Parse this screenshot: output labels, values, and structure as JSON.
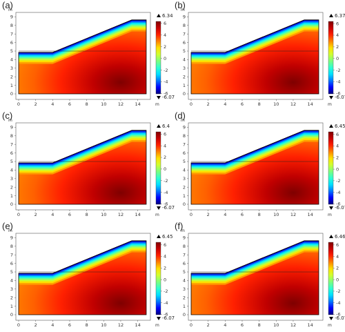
{
  "figure": {
    "colormap": [
      "#00007f",
      "#0000ff",
      "#0078ff",
      "#00e0ff",
      "#30ffd0",
      "#7dff7d",
      "#d0ff30",
      "#ffe000",
      "#ff8000",
      "#ff2000",
      "#c80000",
      "#7f0000"
    ],
    "boundary_color": "#000000",
    "axis_unit": "m",
    "x_ticks": [
      "0",
      "2",
      "4",
      "6",
      "8",
      "10",
      "12",
      "14"
    ],
    "y_ticks": [
      "0",
      "1",
      "2",
      "3",
      "4",
      "5",
      "6",
      "7",
      "8",
      "9"
    ],
    "colorbar_ticks": [
      "6",
      "4",
      "2",
      "0",
      "-2",
      "-4",
      "-6"
    ],
    "panels": [
      {
        "label": "(a)",
        "max": "6.34",
        "min": "-6.07"
      },
      {
        "label": "(b)",
        "max": "6.37",
        "min": "-6.07"
      },
      {
        "label": "(c)",
        "max": "6.4",
        "min": "-6.07"
      },
      {
        "label": "(d)",
        "max": "6.45",
        "min": "-6.07"
      },
      {
        "label": "(e)",
        "max": "6.45",
        "min": "-6.07"
      },
      {
        "label": "(f)",
        "max": "6.46",
        "min": "-6.07"
      }
    ]
  }
}
